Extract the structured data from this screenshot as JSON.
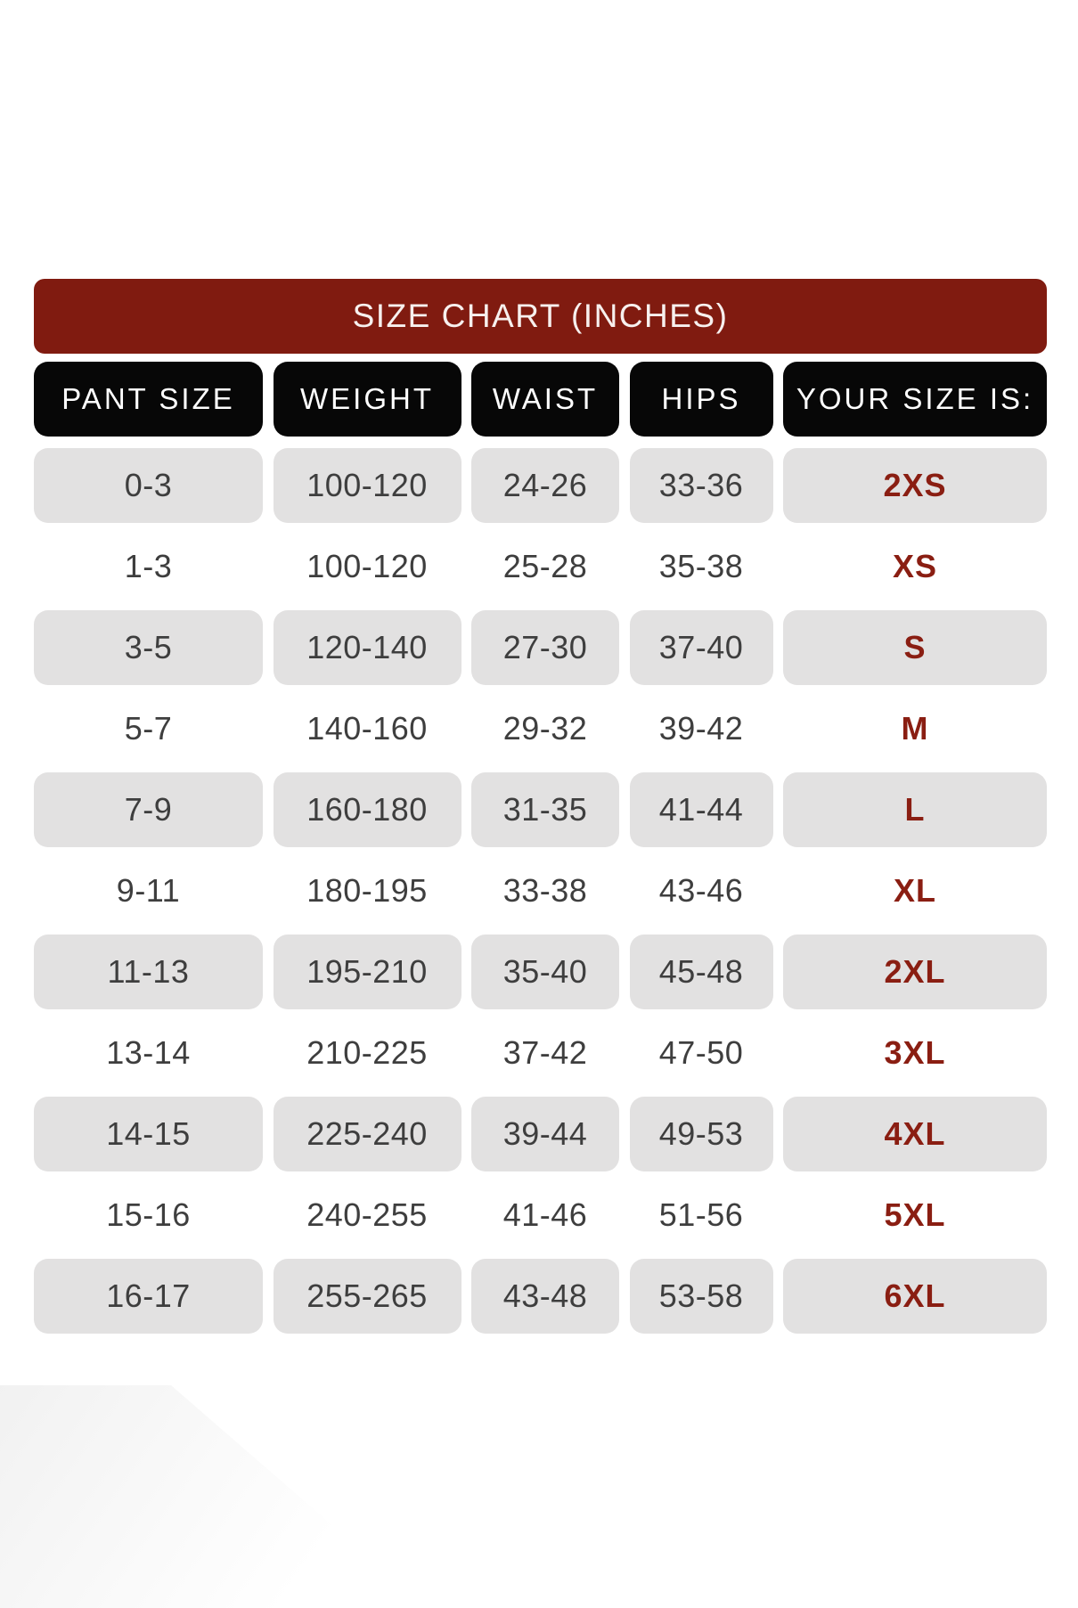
{
  "chart_data": {
    "type": "table",
    "title": "SIZE CHART (INCHES)",
    "columns": [
      "PANT SIZE",
      "WEIGHT",
      "WAIST",
      "HIPS",
      "YOUR SIZE IS:"
    ],
    "rows": [
      [
        "0-3",
        "100-120",
        "24-26",
        "33-36",
        "2XS"
      ],
      [
        "1-3",
        "100-120",
        "25-28",
        "35-38",
        "XS"
      ],
      [
        "3-5",
        "120-140",
        "27-30",
        "37-40",
        "S"
      ],
      [
        "5-7",
        "140-160",
        "29-32",
        "39-42",
        "M"
      ],
      [
        "7-9",
        "160-180",
        "31-35",
        "41-44",
        "L"
      ],
      [
        "9-11",
        "180-195",
        "33-38",
        "43-46",
        "XL"
      ],
      [
        "11-13",
        "195-210",
        "35-40",
        "45-48",
        "2XL"
      ],
      [
        "13-14",
        "210-225",
        "37-42",
        "47-50",
        "3XL"
      ],
      [
        "14-15",
        "225-240",
        "39-44",
        "49-53",
        "4XL"
      ],
      [
        "15-16",
        "240-255",
        "41-46",
        "51-56",
        "5XL"
      ],
      [
        "16-17",
        "255-265",
        "43-48",
        "53-58",
        "6XL"
      ]
    ],
    "layout_hints": {
      "row_striping": "odd rows gray, even rows white",
      "first_stripe": "gray"
    }
  },
  "colors": {
    "title_bg": "#801b10",
    "title_text": "#f7f0ee",
    "header_bg": "#070707",
    "header_text": "#ffffff",
    "row_alt_bg": "#e2e1e1",
    "cell_text": "#3e3e3e",
    "size_text": "#8a1e12"
  }
}
